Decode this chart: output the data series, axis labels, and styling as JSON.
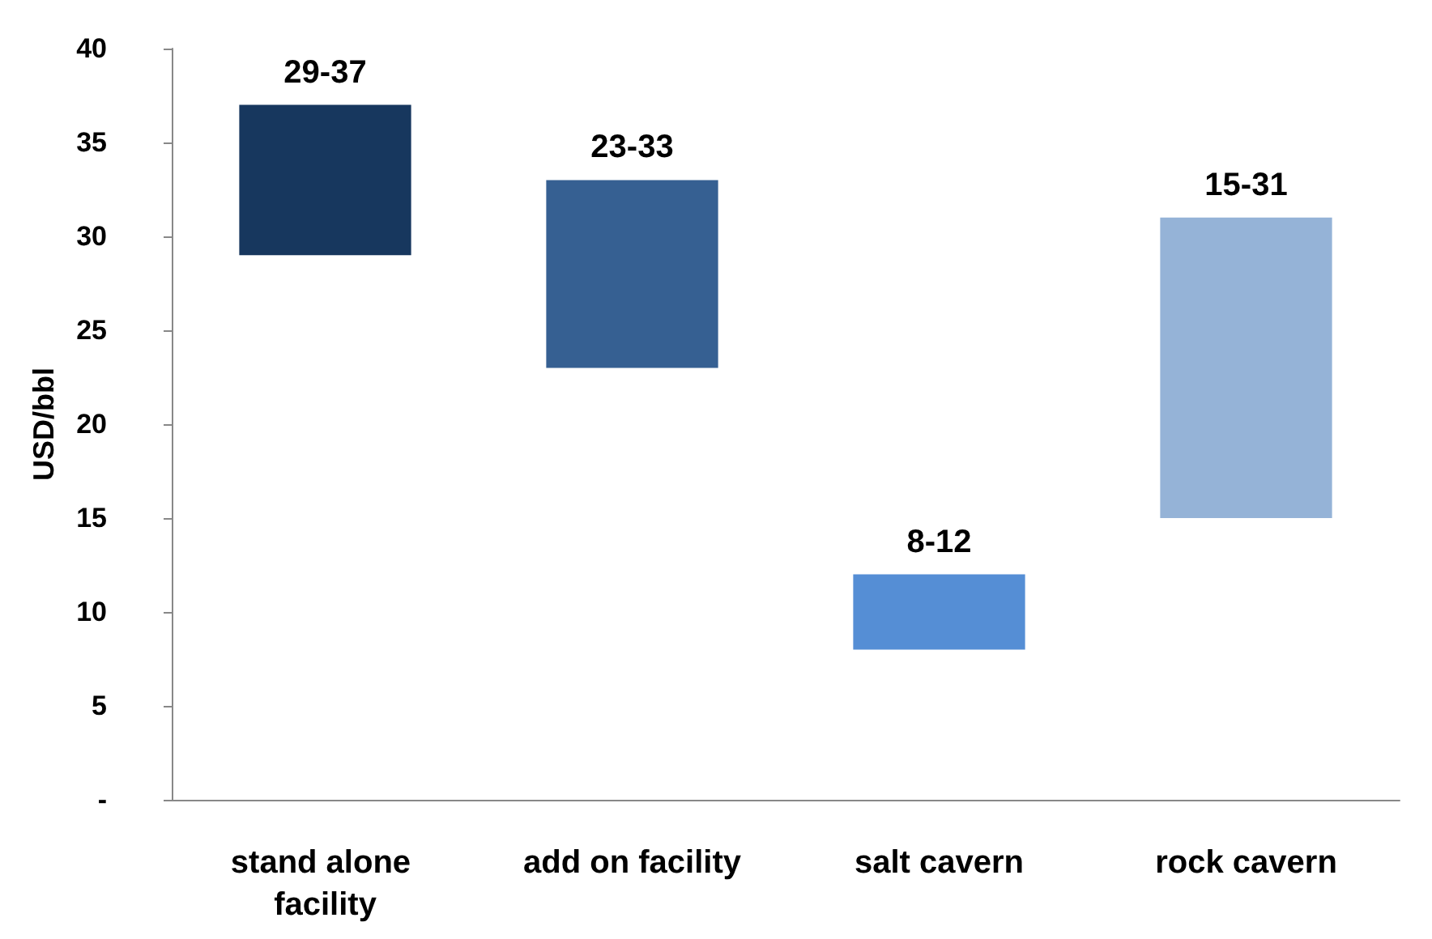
{
  "chart_data": {
    "type": "bar",
    "ylabel": "USD/bbl",
    "categories": [
      "stand alone facility",
      "add on facility",
      "salt cavern",
      "rock cavern"
    ],
    "base": [
      29,
      23,
      8,
      15
    ],
    "values": [
      8,
      10,
      4,
      16
    ],
    "value_labels": [
      "29-37",
      "23-33",
      "8-12",
      "15-31"
    ],
    "colors": [
      "#17375e",
      "#366092",
      "#558ed5",
      "#95b3d7"
    ],
    "ylim": [
      0,
      40
    ],
    "yticks": [
      {
        "value": 0,
        "label": "-"
      },
      5,
      10,
      15,
      20,
      25,
      30,
      35,
      40
    ],
    "grid": false
  }
}
